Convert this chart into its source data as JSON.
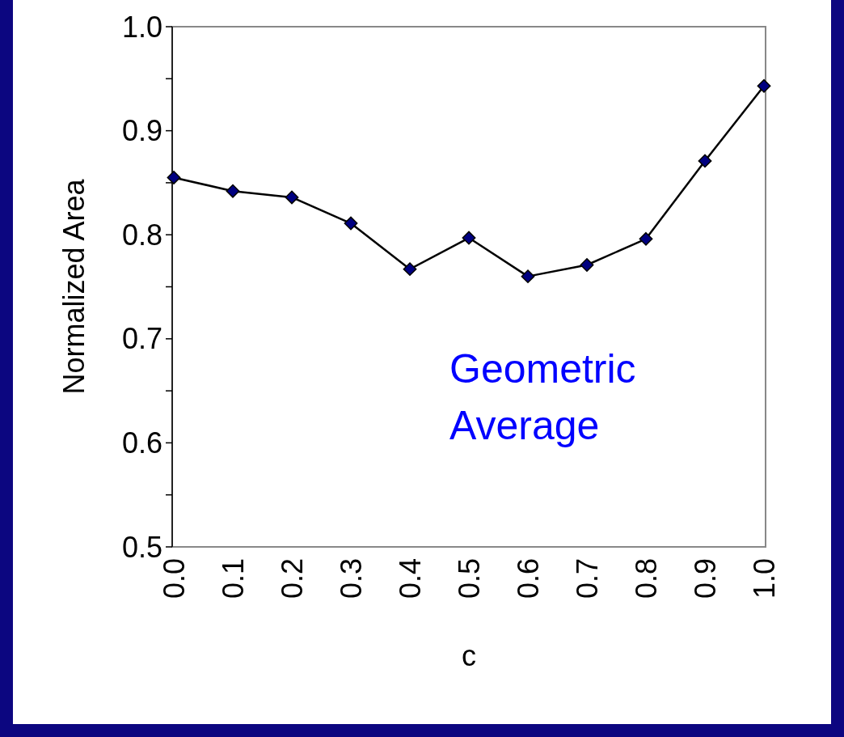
{
  "chart_data": {
    "type": "line",
    "xlabel": "c",
    "ylabel": "Normalized Area",
    "categories": [
      "0.0",
      "0.1",
      "0.2",
      "0.3",
      "0.4",
      "0.5",
      "0.6",
      "0.7",
      "0.8",
      "0.9",
      "1.0"
    ],
    "series": [
      {
        "color": "#000080",
        "values": [
          0.855,
          0.842,
          0.836,
          0.811,
          0.767,
          0.797,
          0.76,
          0.771,
          0.796,
          0.871,
          0.943
        ]
      }
    ],
    "ylim": [
      0.5,
      1.0
    ],
    "yticks": [
      {
        "value": 0.5,
        "label": "0.5"
      },
      {
        "value": 0.55,
        "label": null
      },
      {
        "value": 0.6,
        "label": "0.6"
      },
      {
        "value": 0.65,
        "label": null
      },
      {
        "value": 0.7,
        "label": "0.7"
      },
      {
        "value": 0.75,
        "label": null
      },
      {
        "value": 0.8,
        "label": "0.8"
      },
      {
        "value": 0.85,
        "label": null
      },
      {
        "value": 0.9,
        "label": "0.9"
      },
      {
        "value": 0.95,
        "label": null
      },
      {
        "value": 1.0,
        "label": "1.0"
      }
    ],
    "marker": "diamond",
    "line_style": "solid",
    "grid": false,
    "annotations": [
      "Geometric Average"
    ]
  }
}
